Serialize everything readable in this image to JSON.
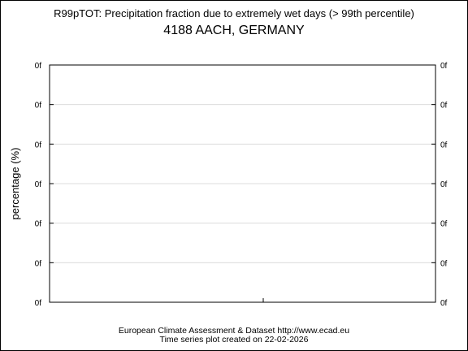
{
  "chart_data": {
    "type": "line",
    "title": "R99pTOT: Precipitation fraction due to extremely wet days (> 99th percentile)",
    "subtitle": "4188 AACH, GERMANY",
    "ylabel": "percentage (%)",
    "xlabel": "",
    "y_tick_labels": [
      "0f",
      "0f",
      "0f",
      "0f",
      "0f",
      "0f",
      "0f"
    ],
    "series": [],
    "grid": true,
    "footer_line1": "European Climate Assessment & Dataset  http://www.ecad.eu",
    "footer_line2": "Time series plot created on 22-02-2026"
  }
}
